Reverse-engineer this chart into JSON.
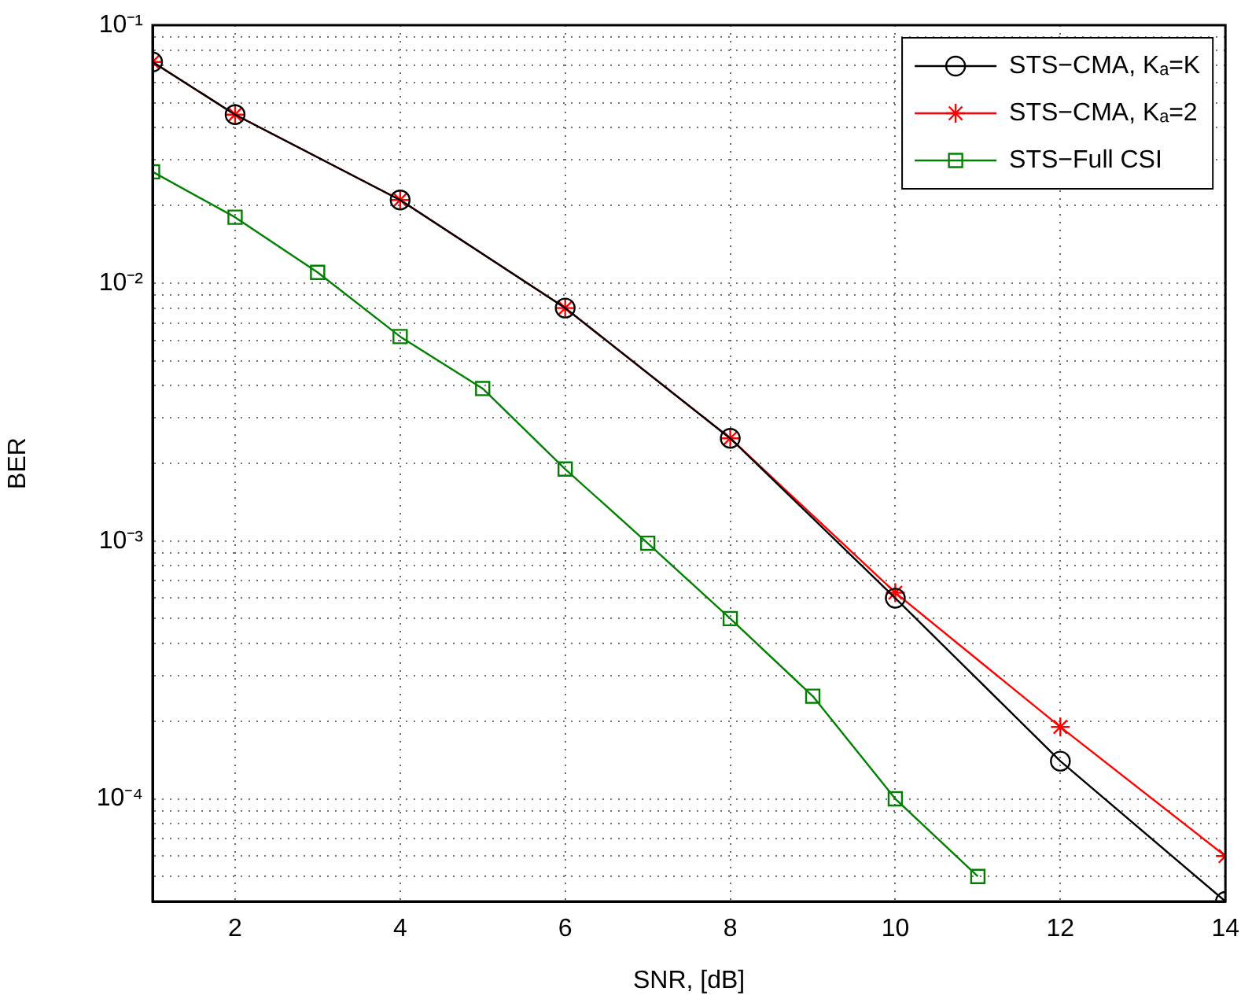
{
  "chart_data": {
    "type": "line",
    "xlabel": "SNR, [dB]",
    "ylabel": "BER",
    "log": "y",
    "grid": true,
    "legend": "top right",
    "line_style": "solid",
    "xlim": [
      1,
      14
    ],
    "xticks": [
      2,
      4,
      6,
      8,
      10,
      12,
      14
    ],
    "ylim": [
      4e-05,
      0.1
    ],
    "yticks": [
      {
        "value": 4e-05,
        "label": null
      },
      {
        "value": 5e-05,
        "label": null
      },
      {
        "value": 6e-05,
        "label": null
      },
      {
        "value": 7e-05,
        "label": null
      },
      {
        "value": 8e-05,
        "label": null
      },
      {
        "value": 9e-05,
        "label": null
      },
      {
        "value": 0.0001,
        "label": "10⁻⁴"
      },
      {
        "value": 0.0002,
        "label": null
      },
      {
        "value": 0.0003,
        "label": null
      },
      {
        "value": 0.0004,
        "label": null
      },
      {
        "value": 0.0005,
        "label": null
      },
      {
        "value": 0.0006,
        "label": null
      },
      {
        "value": 0.0007,
        "label": null
      },
      {
        "value": 0.0008,
        "label": null
      },
      {
        "value": 0.0009,
        "label": null
      },
      {
        "value": 0.001,
        "label": "10⁻³"
      },
      {
        "value": 0.002,
        "label": null
      },
      {
        "value": 0.003,
        "label": null
      },
      {
        "value": 0.004,
        "label": null
      },
      {
        "value": 0.005,
        "label": null
      },
      {
        "value": 0.006,
        "label": null
      },
      {
        "value": 0.007,
        "label": null
      },
      {
        "value": 0.008,
        "label": null
      },
      {
        "value": 0.009,
        "label": null
      },
      {
        "value": 0.01,
        "label": "10⁻²"
      },
      {
        "value": 0.02,
        "label": null
      },
      {
        "value": 0.03,
        "label": null
      },
      {
        "value": 0.04,
        "label": null
      },
      {
        "value": 0.05,
        "label": null
      },
      {
        "value": 0.06,
        "label": null
      },
      {
        "value": 0.07,
        "label": null
      },
      {
        "value": 0.08,
        "label": null
      },
      {
        "value": 0.09,
        "label": null
      },
      {
        "value": 0.1,
        "label": "10⁻¹"
      }
    ],
    "series": [
      {
        "name": "STS−CMA, Kₐ=K",
        "color": "#000000",
        "marker": "circle",
        "x": [
          1,
          2,
          4,
          6,
          8,
          10,
          12,
          14
        ],
        "values": [
          0.072,
          0.045,
          0.021,
          0.008,
          0.0025,
          0.0006,
          0.00014,
          4e-05
        ]
      },
      {
        "name": "STS−CMA, Kₐ=2",
        "color": "#ff0000",
        "marker": "cross",
        "x": [
          1,
          2,
          4,
          6,
          8,
          10,
          12,
          14
        ],
        "values": [
          0.072,
          0.045,
          0.021,
          0.008,
          0.0025,
          0.00063,
          0.00019,
          6e-05
        ]
      },
      {
        "name": "STS−Full CSI",
        "color": "#008000",
        "marker": "square",
        "x": [
          1,
          2,
          3,
          4,
          5,
          6,
          7,
          8,
          9,
          10,
          11
        ],
        "values": [
          0.027,
          0.018,
          0.011,
          0.0062,
          0.0039,
          0.0019,
          0.00098,
          0.0005,
          0.00025,
          0.0001,
          5e-05
        ]
      }
    ]
  }
}
